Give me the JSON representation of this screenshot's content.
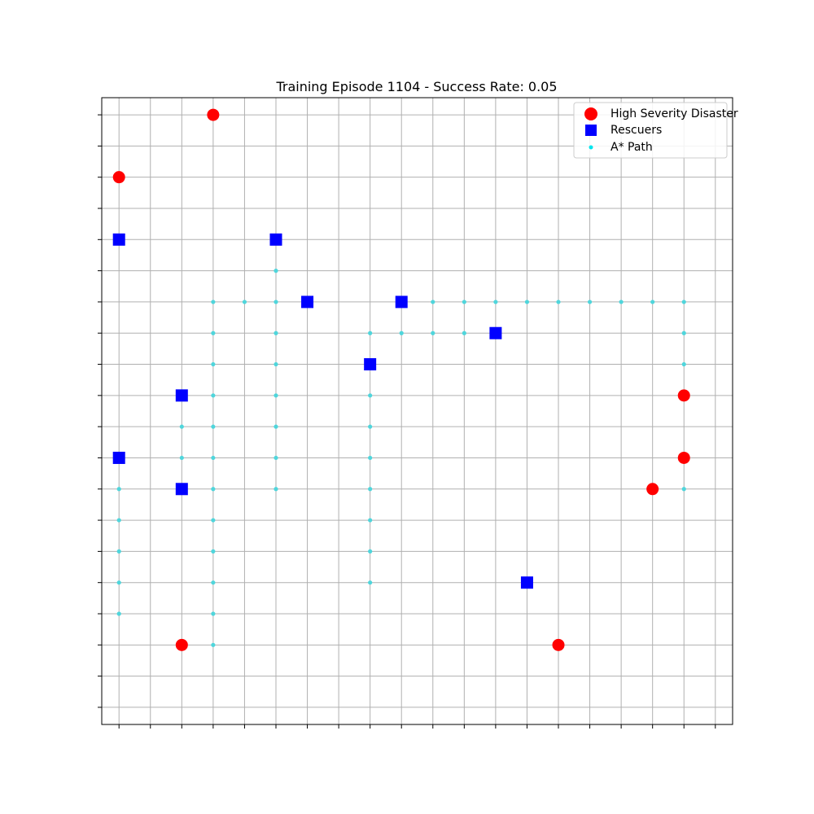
{
  "chart_data": {
    "type": "scatter",
    "title": "Training Episode 1104 - Success Rate: 0.05",
    "xlabel": "",
    "ylabel": "",
    "xlim": [
      -0.55,
      19.55
    ],
    "ylim": [
      -0.55,
      19.55
    ],
    "grid": true,
    "tick_labels": false,
    "legend_placement": "top-right",
    "series": [
      {
        "name": "A* Path",
        "marker": "small-circle",
        "color": "#4fd6dc",
        "points": [
          [
            3,
            13
          ],
          [
            4,
            13
          ],
          [
            5,
            13
          ],
          [
            5,
            14
          ],
          [
            3,
            12
          ],
          [
            3,
            11
          ],
          [
            3,
            10
          ],
          [
            3,
            9
          ],
          [
            3,
            8
          ],
          [
            3,
            7
          ],
          [
            3,
            6
          ],
          [
            3,
            5
          ],
          [
            3,
            4
          ],
          [
            3,
            3
          ],
          [
            3,
            2
          ],
          [
            5,
            12
          ],
          [
            5,
            11
          ],
          [
            5,
            10
          ],
          [
            5,
            9
          ],
          [
            5,
            8
          ],
          [
            5,
            7
          ],
          [
            2,
            9
          ],
          [
            2,
            8
          ],
          [
            0,
            8
          ],
          [
            0,
            7
          ],
          [
            0,
            6
          ],
          [
            0,
            5
          ],
          [
            0,
            4
          ],
          [
            0,
            3
          ],
          [
            8,
            12
          ],
          [
            8,
            10
          ],
          [
            8,
            9
          ],
          [
            8,
            8
          ],
          [
            8,
            7
          ],
          [
            8,
            6
          ],
          [
            8,
            5
          ],
          [
            8,
            4
          ],
          [
            9,
            12
          ],
          [
            10,
            12
          ],
          [
            11,
            12
          ],
          [
            10,
            13
          ],
          [
            11,
            13
          ],
          [
            12,
            13
          ],
          [
            13,
            13
          ],
          [
            14,
            13
          ],
          [
            15,
            13
          ],
          [
            16,
            13
          ],
          [
            17,
            13
          ],
          [
            18,
            13
          ],
          [
            18,
            12
          ],
          [
            18,
            11
          ],
          [
            18,
            10
          ],
          [
            18,
            8
          ],
          [
            18,
            7
          ]
        ]
      },
      {
        "name": "Rescuers",
        "marker": "square",
        "color": "#0000ff",
        "points": [
          [
            0,
            15
          ],
          [
            5,
            15
          ],
          [
            6,
            13
          ],
          [
            9,
            13
          ],
          [
            12,
            12
          ],
          [
            8,
            11
          ],
          [
            2,
            10
          ],
          [
            0,
            8
          ],
          [
            2,
            7
          ],
          [
            13,
            4
          ]
        ]
      },
      {
        "name": "High Severity Disaster",
        "marker": "circle",
        "color": "#ff0000",
        "points": [
          [
            3,
            19
          ],
          [
            0,
            17
          ],
          [
            18,
            10
          ],
          [
            18,
            8
          ],
          [
            17,
            7
          ],
          [
            2,
            2
          ],
          [
            14,
            2
          ]
        ]
      }
    ],
    "legend_order": [
      "High Severity Disaster",
      "Rescuers",
      "A* Path"
    ]
  }
}
